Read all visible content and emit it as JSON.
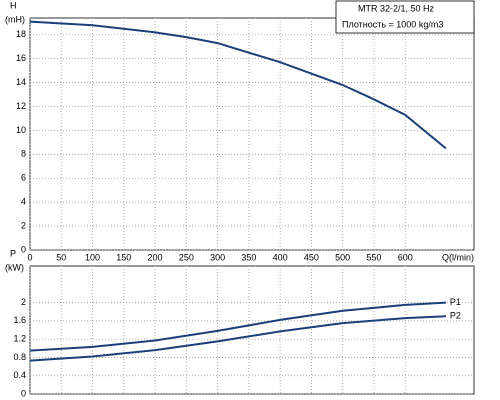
{
  "chart_data": [
    {
      "type": "line",
      "y_label_top": "H",
      "y_label": "(mH)",
      "x_label": "Q(l/min)",
      "legend_lines": [
        "MTR 32-2/1, 50 Hz",
        "Плотность = 1000 kg/m3"
      ],
      "x": [
        0,
        100,
        200,
        250,
        300,
        400,
        500,
        550,
        600,
        665
      ],
      "series": [
        {
          "color": "#1b3f78",
          "values": [
            19.1,
            18.8,
            18.2,
            17.8,
            17.3,
            15.7,
            13.8,
            12.6,
            11.3,
            8.5
          ]
        }
      ],
      "xlim": [
        0,
        710
      ],
      "ylim": [
        0,
        19.4
      ],
      "xticks": [
        0,
        50,
        100,
        150,
        200,
        250,
        300,
        350,
        400,
        450,
        500,
        550,
        600
      ],
      "yticks": [
        0,
        2,
        4,
        6,
        8,
        10,
        12,
        14,
        16,
        18
      ],
      "grid": true
    },
    {
      "type": "line",
      "y_label_top": "P",
      "y_label": "(kW)",
      "x": [
        0,
        100,
        200,
        300,
        400,
        500,
        600,
        665
      ],
      "series": [
        {
          "name": "P1",
          "color": "#1b3f78",
          "values": [
            0.95,
            1.03,
            1.17,
            1.38,
            1.62,
            1.82,
            1.95,
            2.0
          ]
        },
        {
          "name": "P2",
          "color": "#1b3f78",
          "values": [
            0.73,
            0.82,
            0.96,
            1.15,
            1.37,
            1.55,
            1.66,
            1.7
          ]
        }
      ],
      "xlim": [
        0,
        710
      ],
      "ylim": [
        0,
        2.8
      ],
      "xticks": [
        0,
        50,
        100,
        150,
        200,
        250,
        300,
        350,
        400,
        450,
        500,
        550,
        600
      ],
      "yticks": [
        0,
        0.4,
        0.8,
        1.2,
        1.6,
        2
      ],
      "grid": true
    }
  ]
}
